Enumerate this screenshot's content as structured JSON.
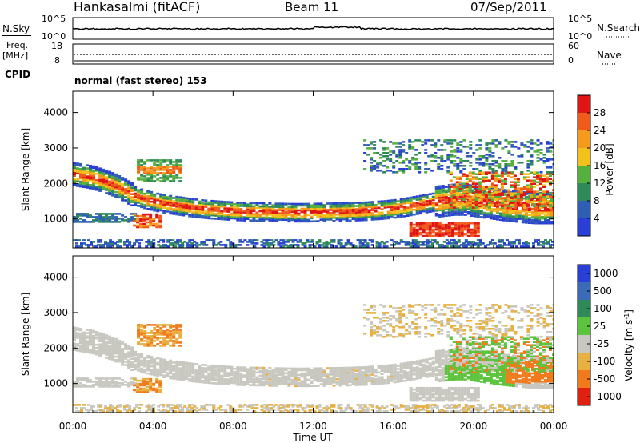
{
  "header": {
    "station": "Hankasalmi (fitACF)",
    "beam": "Beam 11",
    "date": "07/Sep/2011"
  },
  "top_panel": {
    "nsky_label": "N.Sky",
    "nsearch_label": "N.Search",
    "left_ticks": [
      "10^5",
      "10^0"
    ],
    "right_ticks": [
      "10^5",
      "10^0"
    ],
    "freq_label_1": "Freq.",
    "freq_label_2": "[MHz]",
    "freq_ticks": [
      "18",
      "8"
    ],
    "nave_label": "Nave",
    "nave_ticks": [
      "60",
      "0"
    ],
    "cpid_label": "CPID",
    "cpid_text": "normal (fast stereo) 153"
  },
  "colors": {
    "power": [
      "#2a3fd6",
      "#2f5fb5",
      "#2f8a5a",
      "#56b03d",
      "#f2c21a",
      "#f59a1c",
      "#f05a1a",
      "#e01515"
    ],
    "velocity": [
      "#2a3fd6",
      "#3a6ab8",
      "#2f8a5a",
      "#5cc43c",
      "#c8c8c0",
      "#e8b040",
      "#f07a1c",
      "#e02010"
    ]
  },
  "chart_data": [
    {
      "type": "heatmap",
      "title": "",
      "xlabel": "",
      "ylabel": "Slant Range [km]",
      "xlim": [
        "00:00",
        "24:00"
      ],
      "ylim": [
        180,
        4600
      ],
      "y_ticks": [
        "4000",
        "3000",
        "2000",
        "1000"
      ],
      "colorbar_label": "Power [dB]",
      "colorbar_ticks": [
        "28",
        "24",
        "20",
        "16",
        "12",
        "8",
        "4"
      ],
      "colorbar_range": [
        0,
        32
      ],
      "series": [
        {
          "x": [
            0.0,
            0.5,
            1.0,
            1.5,
            2.0,
            2.5,
            3.0,
            3.5,
            4.0,
            4.5,
            5.0,
            5.5,
            6.0,
            6.5,
            7.0,
            7.5,
            8.0,
            8.5,
            9.0,
            9.5,
            10.0,
            10.5,
            11.0,
            11.5,
            12.0,
            12.5,
            13.0,
            13.5,
            14.0,
            14.5,
            15.0,
            15.5,
            16.0,
            16.5,
            17.0,
            17.5,
            18.0,
            18.5,
            19.0,
            19.5,
            20.0,
            20.5,
            21.0,
            21.5,
            22.0,
            22.5,
            23.0,
            23.5,
            24.0
          ],
          "y": [
            2250,
            2200,
            2150,
            2050,
            1950,
            1800,
            1650,
            1550,
            1480,
            1420,
            1380,
            1340,
            1300,
            1270,
            1250,
            1230,
            1210,
            1200,
            1195,
            1190,
            1180,
            1175,
            1170,
            1170,
            1175,
            1180,
            1185,
            1190,
            1200,
            1210,
            1230,
            1250,
            1280,
            1320,
            1370,
            1420,
            1470,
            1510,
            1540,
            1540,
            1500,
            1460,
            1420,
            1380,
            1350,
            1320,
            1300,
            1300,
            1300
          ]
        }
      ]
    },
    {
      "type": "heatmap",
      "title": "",
      "xlabel": "Time UT",
      "ylabel": "Slant Range [km]",
      "xlim": [
        "00:00",
        "24:00"
      ],
      "ylim": [
        180,
        4600
      ],
      "y_ticks": [
        "4000",
        "3000",
        "2000",
        "1000"
      ],
      "x_ticks": [
        "00:00",
        "04:00",
        "08:00",
        "12:00",
        "16:00",
        "20:00",
        "00:00"
      ],
      "colorbar_label": "Velocity [m s^-1]",
      "colorbar_ticks": [
        "1000",
        "500",
        "100",
        "25",
        "-25",
        "-100",
        "-500",
        "-1000"
      ]
    }
  ]
}
